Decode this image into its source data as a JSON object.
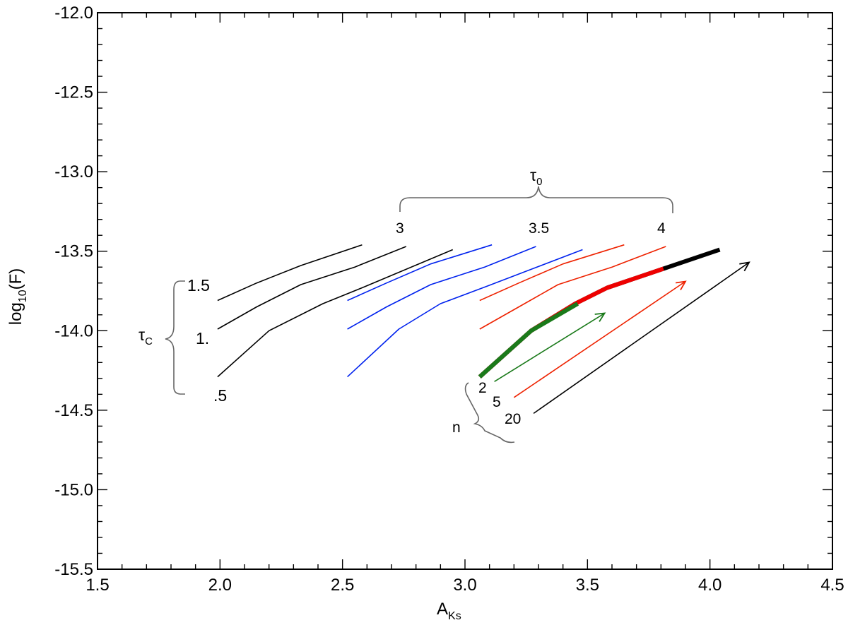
{
  "chart_data": {
    "type": "line",
    "xlabel_main": "A",
    "xlabel_sub": "Ks",
    "ylabel_main": "log",
    "ylabel_sub": "10",
    "ylabel_tail": "(F)",
    "xlim": [
      1.5,
      4.5
    ],
    "ylim": [
      -15.5,
      -12.0
    ],
    "xticks": [
      "1.5",
      "2.0",
      "2.5",
      "3.0",
      "3.5",
      "4.0",
      "4.5"
    ],
    "yticks": [
      "-12.0",
      "-12.5",
      "-13.0",
      "-13.5",
      "-14.0",
      "-14.5",
      "-15.0",
      "-15.5"
    ],
    "grid": false,
    "series": [
      {
        "color": "#000000",
        "width": 1.6,
        "points": [
          [
            1.99,
            -13.81
          ],
          [
            2.15,
            -13.7
          ],
          [
            2.33,
            -13.59
          ],
          [
            2.58,
            -13.46
          ]
        ]
      },
      {
        "color": "#000000",
        "width": 1.6,
        "points": [
          [
            1.99,
            -13.99
          ],
          [
            2.15,
            -13.85
          ],
          [
            2.33,
            -13.71
          ],
          [
            2.55,
            -13.6
          ],
          [
            2.76,
            -13.47
          ]
        ]
      },
      {
        "color": "#000000",
        "width": 1.6,
        "points": [
          [
            1.99,
            -14.29
          ],
          [
            2.2,
            -14.0
          ],
          [
            2.42,
            -13.83
          ],
          [
            2.58,
            -13.73
          ],
          [
            2.95,
            -13.49
          ]
        ]
      },
      {
        "color": "#0022ee",
        "width": 1.6,
        "points": [
          [
            2.52,
            -13.81
          ],
          [
            2.68,
            -13.7
          ],
          [
            2.86,
            -13.58
          ],
          [
            3.11,
            -13.46
          ]
        ]
      },
      {
        "color": "#0022ee",
        "width": 1.6,
        "points": [
          [
            2.52,
            -13.99
          ],
          [
            2.68,
            -13.85
          ],
          [
            2.86,
            -13.71
          ],
          [
            3.08,
            -13.6
          ],
          [
            3.29,
            -13.47
          ]
        ]
      },
      {
        "color": "#0022ee",
        "width": 1.6,
        "points": [
          [
            2.52,
            -14.29
          ],
          [
            2.73,
            -13.99
          ],
          [
            2.9,
            -13.83
          ],
          [
            3.09,
            -13.72
          ],
          [
            3.48,
            -13.49
          ]
        ]
      },
      {
        "color": "#ee2200",
        "width": 1.6,
        "points": [
          [
            3.06,
            -13.81
          ],
          [
            3.22,
            -13.7
          ],
          [
            3.4,
            -13.58
          ],
          [
            3.65,
            -13.46
          ]
        ]
      },
      {
        "color": "#ee2200",
        "width": 1.6,
        "points": [
          [
            3.06,
            -13.99
          ],
          [
            3.22,
            -13.85
          ],
          [
            3.38,
            -13.71
          ],
          [
            3.6,
            -13.6
          ],
          [
            3.82,
            -13.47
          ]
        ]
      },
      {
        "color": "#000000",
        "width": 6,
        "points": [
          [
            3.06,
            -14.29
          ],
          [
            3.27,
            -14.0
          ],
          [
            3.45,
            -13.83
          ],
          [
            3.58,
            -13.73
          ],
          [
            3.81,
            -13.61
          ],
          [
            4.04,
            -13.49
          ]
        ]
      },
      {
        "color": "#ee0000",
        "width": 6,
        "points": [
          [
            3.06,
            -14.29
          ],
          [
            3.27,
            -14.0
          ],
          [
            3.45,
            -13.83
          ],
          [
            3.58,
            -13.73
          ],
          [
            3.81,
            -13.61
          ]
        ]
      },
      {
        "color": "#1a7a1a",
        "width": 6,
        "points": [
          [
            3.06,
            -14.29
          ],
          [
            3.27,
            -14.0
          ],
          [
            3.46,
            -13.83
          ]
        ]
      }
    ],
    "arrows": [
      {
        "color": "#1a7a1a",
        "from": [
          3.12,
          -14.32
        ],
        "to": [
          3.57,
          -13.89
        ]
      },
      {
        "color": "#ee2200",
        "from": [
          3.2,
          -14.42
        ],
        "to": [
          3.9,
          -13.69
        ]
      },
      {
        "color": "#000000",
        "from": [
          3.28,
          -14.52
        ],
        "to": [
          4.16,
          -13.57
        ]
      }
    ],
    "annotations": {
      "tau0_main": "τ",
      "tau0_sub": "0",
      "tau0_values": [
        "3",
        "3.5",
        "4"
      ],
      "tauc_main": "τ",
      "tauc_sub": "C",
      "tauc_values": [
        "1.5",
        "1.",
        ".5"
      ],
      "n_label": "n",
      "n_values": [
        "2",
        "5",
        "20"
      ]
    }
  }
}
